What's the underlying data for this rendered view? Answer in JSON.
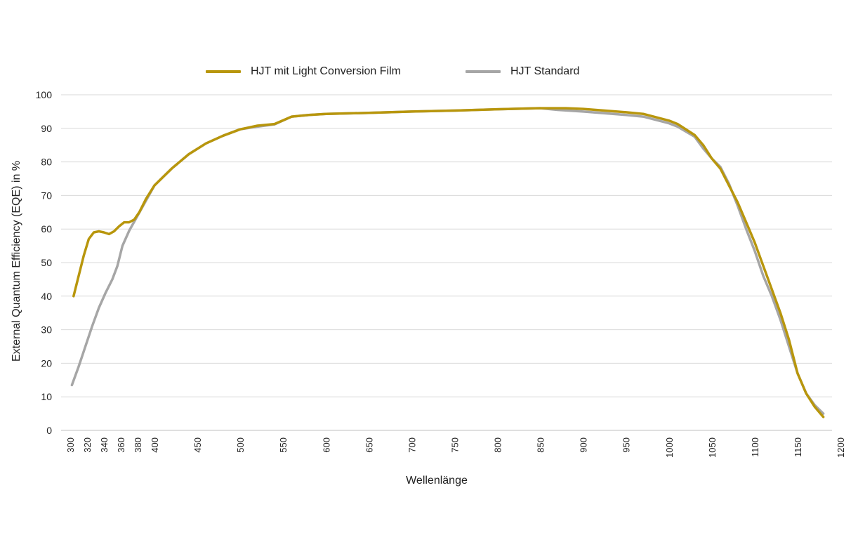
{
  "chart_data": {
    "type": "line",
    "title": "",
    "xlabel": "Wellenlänge",
    "ylabel": "External Quantum Efficiency (EQE) in %",
    "xlim": [
      300,
      1200
    ],
    "ylim": [
      0,
      100
    ],
    "x_ticks": [
      300,
      320,
      340,
      360,
      380,
      400,
      450,
      500,
      550,
      600,
      650,
      700,
      750,
      800,
      850,
      900,
      950,
      1000,
      1050,
      1100,
      1150,
      1200
    ],
    "y_ticks": [
      0,
      10,
      20,
      30,
      40,
      50,
      60,
      70,
      80,
      90,
      100
    ],
    "grid": "horizontal",
    "legend_position": "top-center",
    "series": [
      {
        "name": "HJT mit Light Conversion Film",
        "color": "#b8960c",
        "points": [
          [
            304,
            40
          ],
          [
            310,
            46
          ],
          [
            316,
            52
          ],
          [
            322,
            57
          ],
          [
            328,
            59
          ],
          [
            334,
            59.3
          ],
          [
            340,
            59
          ],
          [
            346,
            58.5
          ],
          [
            352,
            59.3
          ],
          [
            358,
            60.8
          ],
          [
            364,
            62
          ],
          [
            370,
            62
          ],
          [
            376,
            62.8
          ],
          [
            382,
            65
          ],
          [
            390,
            69
          ],
          [
            400,
            73
          ],
          [
            420,
            78
          ],
          [
            440,
            82.3
          ],
          [
            460,
            85.5
          ],
          [
            480,
            87.8
          ],
          [
            500,
            89.7
          ],
          [
            520,
            90.8
          ],
          [
            540,
            91.3
          ],
          [
            560,
            93.5
          ],
          [
            580,
            94
          ],
          [
            600,
            94.3
          ],
          [
            650,
            94.6
          ],
          [
            700,
            95
          ],
          [
            750,
            95.3
          ],
          [
            800,
            95.7
          ],
          [
            850,
            96
          ],
          [
            880,
            96
          ],
          [
            900,
            95.8
          ],
          [
            950,
            94.8
          ],
          [
            970,
            94.3
          ],
          [
            1000,
            92.3
          ],
          [
            1010,
            91.3
          ],
          [
            1030,
            88
          ],
          [
            1040,
            85
          ],
          [
            1050,
            81
          ],
          [
            1060,
            78
          ],
          [
            1070,
            73
          ],
          [
            1080,
            68
          ],
          [
            1090,
            62
          ],
          [
            1100,
            56
          ],
          [
            1110,
            49
          ],
          [
            1120,
            42
          ],
          [
            1130,
            35
          ],
          [
            1140,
            27
          ],
          [
            1150,
            17
          ],
          [
            1160,
            11
          ],
          [
            1170,
            7
          ],
          [
            1180,
            4
          ]
        ]
      },
      {
        "name": "HJT Standard",
        "color": "#a6a6a6",
        "points": [
          [
            302,
            13.5
          ],
          [
            310,
            19
          ],
          [
            318,
            25
          ],
          [
            326,
            31
          ],
          [
            334,
            36.5
          ],
          [
            342,
            41
          ],
          [
            350,
            45
          ],
          [
            356,
            49
          ],
          [
            362,
            55
          ],
          [
            370,
            59.5
          ],
          [
            380,
            64
          ],
          [
            390,
            68.5
          ],
          [
            400,
            73
          ],
          [
            420,
            78
          ],
          [
            440,
            82.3
          ],
          [
            460,
            85.5
          ],
          [
            480,
            87.8
          ],
          [
            500,
            89.7
          ],
          [
            520,
            90.5
          ],
          [
            540,
            91.2
          ],
          [
            560,
            93.5
          ],
          [
            580,
            94
          ],
          [
            600,
            94.3
          ],
          [
            650,
            94.6
          ],
          [
            700,
            95
          ],
          [
            750,
            95.3
          ],
          [
            800,
            95.7
          ],
          [
            850,
            96
          ],
          [
            870,
            95.5
          ],
          [
            900,
            95
          ],
          [
            950,
            94
          ],
          [
            970,
            93.5
          ],
          [
            1000,
            91.5
          ],
          [
            1010,
            90.5
          ],
          [
            1030,
            87.5
          ],
          [
            1040,
            84
          ],
          [
            1050,
            81
          ],
          [
            1060,
            78.5
          ],
          [
            1070,
            73.5
          ],
          [
            1080,
            67
          ],
          [
            1090,
            60
          ],
          [
            1100,
            53.5
          ],
          [
            1110,
            46
          ],
          [
            1120,
            40
          ],
          [
            1130,
            33
          ],
          [
            1140,
            25
          ],
          [
            1150,
            17
          ],
          [
            1160,
            11
          ],
          [
            1170,
            7.5
          ],
          [
            1180,
            5
          ]
        ]
      }
    ]
  }
}
